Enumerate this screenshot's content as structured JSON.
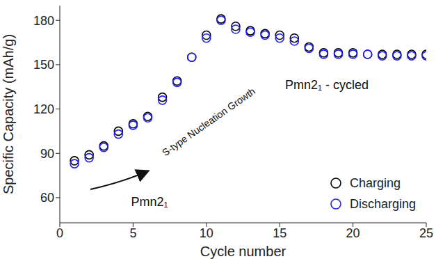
{
  "chart_data": {
    "type": "scatter",
    "x_label": "Cycle number",
    "y_label": "Specific Capacity (mAh/g)",
    "x": [
      1,
      2,
      3,
      4,
      5,
      6,
      7,
      8,
      9,
      10,
      11,
      12,
      13,
      14,
      15,
      16,
      17,
      18,
      19,
      20,
      21,
      22,
      23,
      24,
      25
    ],
    "series": [
      {
        "name": "Charging",
        "color": "#000000",
        "marker": "open_circle",
        "values": [
          85,
          89,
          95,
          105,
          110,
          115,
          128,
          139,
          155,
          170,
          181,
          176,
          173,
          171,
          170,
          168,
          162,
          158,
          158,
          158,
          157,
          157,
          157,
          157,
          157
        ]
      },
      {
        "name": "Discharging",
        "color": "#1f1fff",
        "marker": "open_circle",
        "values": [
          83,
          87,
          94,
          103,
          109,
          114,
          126,
          138,
          155,
          168,
          180,
          174,
          172,
          170,
          168,
          166,
          161,
          157,
          157,
          157,
          157,
          156,
          156,
          156,
          156
        ]
      }
    ],
    "xlim": [
      0,
      25
    ],
    "xticks": [
      0,
      5,
      10,
      15,
      20,
      25
    ],
    "ylim": [
      43,
      190
    ],
    "yticks": [
      60,
      90,
      120,
      150,
      180
    ],
    "grid": false,
    "legend": "lower right",
    "annotations": [
      "S-type Nucleation Growth",
      "Pmn2₁",
      "Pmn2₁ - cycled"
    ]
  }
}
